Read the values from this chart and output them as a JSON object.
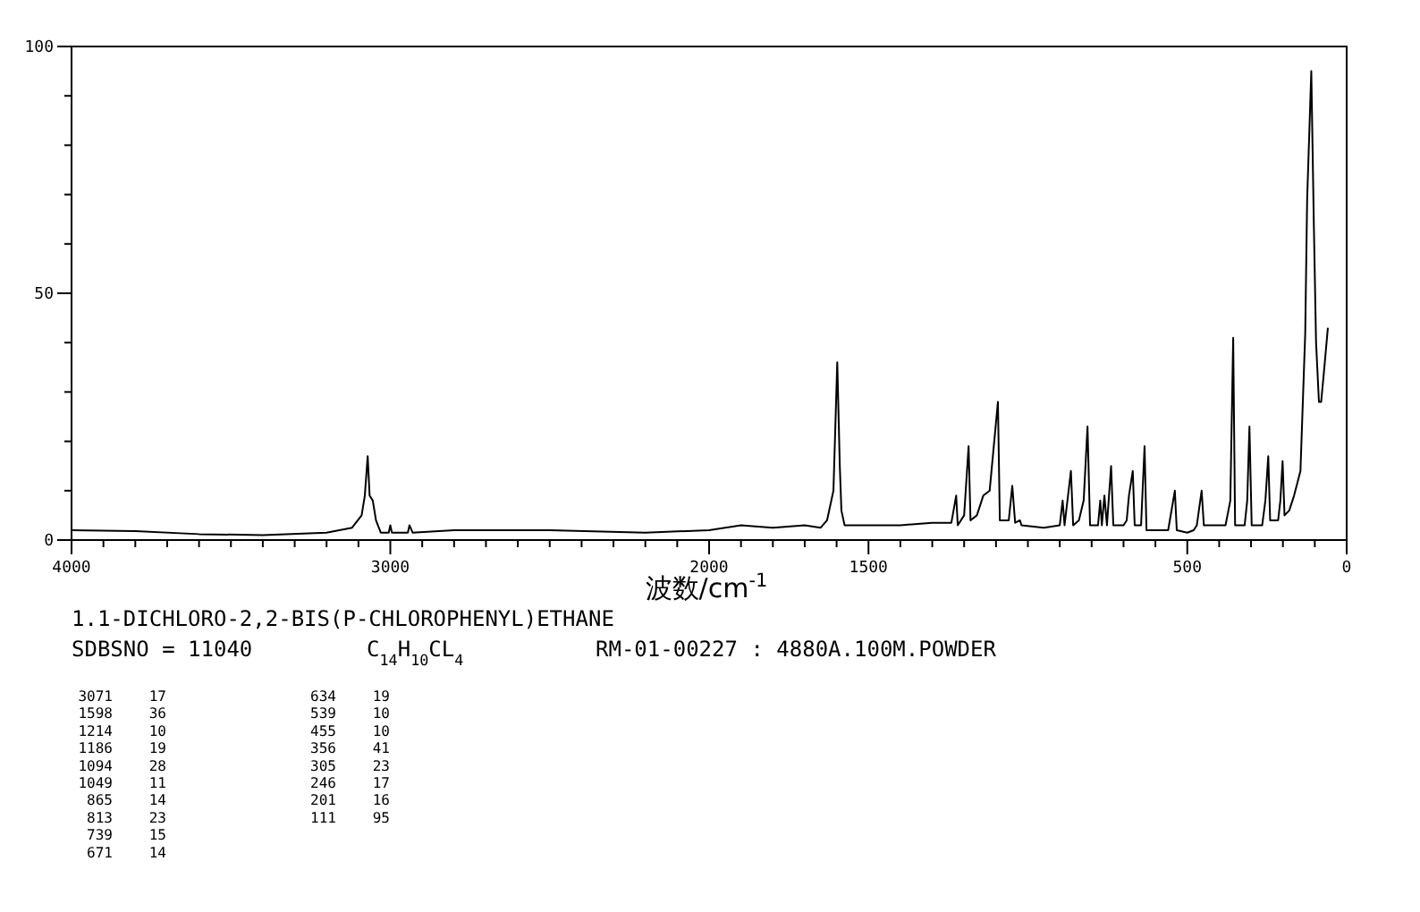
{
  "chart_data": {
    "type": "line",
    "title": "1.1-DICHLORO-2,2-BIS(P-CHLOROPHENYL)ETHANE",
    "subtitle": "SDBSNO = 11040",
    "xlabel": "波数/cm$^{-1}$",
    "xlim": [
      4000,
      0
    ],
    "ylim": [
      0,
      100
    ],
    "xticks": [
      4000,
      {
        "value": 3900,
        "label": null
      },
      {
        "value": 3800,
        "label": null
      },
      {
        "value": 3700,
        "label": null
      },
      {
        "value": 3600,
        "label": null
      },
      {
        "value": 3500,
        "label": null
      },
      {
        "value": 3400,
        "label": null
      },
      {
        "value": 3300,
        "label": null
      },
      {
        "value": 3200,
        "label": null
      },
      {
        "value": 3100,
        "label": null
      },
      3000,
      {
        "value": 2900,
        "label": null
      },
      {
        "value": 2800,
        "label": null
      },
      {
        "value": 2700,
        "label": null
      },
      {
        "value": 2600,
        "label": null
      },
      {
        "value": 2500,
        "label": null
      },
      {
        "value": 2400,
        "label": null
      },
      {
        "value": 2300,
        "label": null
      },
      {
        "value": 2200,
        "label": null
      },
      {
        "value": 2100,
        "label": null
      },
      2000,
      {
        "value": 1900,
        "label": null
      },
      {
        "value": 1800,
        "label": null
      },
      {
        "value": 1700,
        "label": null
      },
      {
        "value": 1600,
        "label": null
      },
      1500,
      {
        "value": 1400,
        "label": null
      },
      {
        "value": 1300,
        "label": null
      },
      {
        "value": 1200,
        "label": null
      },
      {
        "value": 1100,
        "label": null
      },
      {
        "value": 1000,
        "label": null
      },
      {
        "value": 900,
        "label": null
      },
      {
        "value": 800,
        "label": null
      },
      {
        "value": 700,
        "label": null
      },
      {
        "value": 600,
        "label": null
      },
      500,
      {
        "value": 400,
        "label": null
      },
      {
        "value": 300,
        "label": null
      },
      {
        "value": 200,
        "label": null
      },
      {
        "value": 100,
        "label": null
      },
      0
    ],
    "yticks": [
      0,
      {
        "value": 10,
        "label": null
      },
      {
        "value": 20,
        "label": null
      },
      {
        "value": 30,
        "label": null
      },
      {
        "value": 40,
        "label": null
      },
      50,
      {
        "value": 60,
        "label": null
      },
      {
        "value": 70,
        "label": null
      },
      {
        "value": 80,
        "label": null
      },
      {
        "value": 90,
        "label": null
      },
      100
    ],
    "grid": false,
    "marker": "none",
    "line_style": "solid",
    "series": [
      {
        "color": "#000000",
        "x": [
          4000,
          3800,
          3600,
          3400,
          3200,
          3120,
          3090,
          3080,
          3071,
          3065,
          3055,
          3045,
          3030,
          3005,
          3000,
          2995,
          2945,
          2940,
          2930,
          2800,
          2500,
          2200,
          2000,
          1900,
          1800,
          1700,
          1650,
          1630,
          1610,
          1598,
          1590,
          1585,
          1575,
          1500,
          1400,
          1300,
          1240,
          1225,
          1220,
          1200,
          1186,
          1180,
          1160,
          1140,
          1120,
          1094,
          1088,
          1060,
          1049,
          1040,
          1025,
          1020,
          950,
          900,
          891,
          885,
          865,
          858,
          840,
          825,
          813,
          805,
          780,
          773,
          768,
          760,
          752,
          739,
          732,
          700,
          690,
          683,
          671,
          665,
          645,
          634,
          628,
          560,
          539,
          533,
          500,
          480,
          470,
          455,
          448,
          380,
          365,
          356,
          350,
          320,
          312,
          305,
          298,
          265,
          255,
          246,
          240,
          215,
          208,
          201,
          195,
          180,
          165,
          145,
          130,
          124,
          111,
          103,
          96,
          87,
          80,
          70,
          59
        ],
        "values": [
          2,
          1.8,
          1.2,
          1,
          1.5,
          2.5,
          5,
          9,
          17,
          9,
          8,
          4,
          1.5,
          1.5,
          3,
          1.5,
          1.5,
          3,
          1.5,
          2,
          2,
          1.5,
          2,
          3,
          2.5,
          3,
          2.5,
          4,
          10,
          36,
          15,
          6,
          3,
          3,
          3,
          3.5,
          3.5,
          9,
          3,
          5,
          19,
          4,
          5,
          9,
          10,
          28,
          4,
          4,
          11,
          3.5,
          4,
          3,
          2.5,
          3,
          8,
          3,
          14,
          3,
          4,
          8,
          23,
          3,
          3,
          8,
          3,
          9,
          3,
          15,
          3,
          3,
          4,
          9,
          14,
          3,
          3,
          19,
          2,
          2,
          10,
          2,
          1.5,
          2,
          3,
          10,
          3,
          3,
          8,
          41,
          3,
          3,
          8,
          23,
          3,
          3,
          8,
          17,
          4,
          4,
          8,
          16,
          5,
          6,
          9,
          14,
          42,
          69,
          95,
          64,
          40,
          28,
          28,
          35,
          43
        ]
      }
    ],
    "annotations": [
      "C$_{14}$H$_{10}$CL$_{4}$",
      "RM-01-00227 : 4880A.100M.POWDER",
      "3071 17",
      "1598 36",
      "1214 10",
      "1186 19",
      "1094 28",
      "1049 11",
      "865 14",
      "813 23",
      "739 15",
      "671 14",
      "634 19",
      "539 10",
      "455 10",
      "356 41",
      "305 23",
      "246 17",
      "201 16",
      "111 95"
    ]
  }
}
